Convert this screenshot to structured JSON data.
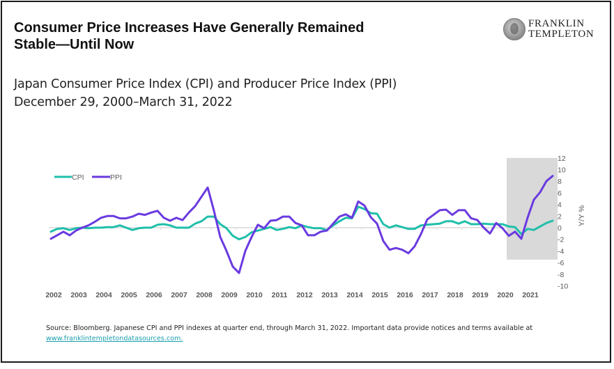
{
  "header": {
    "title_line1": "Consumer Price Increases Have Generally Remained",
    "title_line2": "Stable—Until Now",
    "subtitle_line1": "Japan Consumer Price Index (CPI) and Producer Price Index (PPI)",
    "subtitle_line2": "December 29, 2000–March 31, 2022"
  },
  "logo": {
    "line1": "FRANKLIN",
    "line2": "TEMPLETON",
    "icon": "franklin-portrait-icon"
  },
  "footer": {
    "source_text": "Source: Bloomberg. Japanese CPI and PPI indexes at quarter end, through March 31, 2022. Important data provide notices and terms available at ",
    "link_text": "www.franklintempletondatasources.com."
  },
  "colors": {
    "cpi": "#1fbfaa",
    "ppi": "#6a3ae0",
    "highlight": "#d9d9d9",
    "axis_text": "#595959",
    "zero_line": "#d9d9d9"
  },
  "chart_data": {
    "type": "line",
    "title": "Japan Consumer Price Index (CPI) and Producer Price Index (PPI)",
    "xlabel": "",
    "ylabel": "Y/Y %",
    "ylim": [
      -10,
      12
    ],
    "yticks": [
      12,
      10,
      8,
      6,
      4,
      2,
      0,
      -2,
      -4,
      -6,
      -8,
      -10
    ],
    "xtick_labels": [
      "2002",
      "2003",
      "2004",
      "2005",
      "2006",
      "2007",
      "2008",
      "2009",
      "2010",
      "2011",
      "2012",
      "2013",
      "2014",
      "2015",
      "2016",
      "2017",
      "2018",
      "2019",
      "2020",
      "2021"
    ],
    "x_start": "2002-Q1",
    "x_end": "2022-Q1",
    "frequency": "quarterly",
    "legend": {
      "position": "top-left",
      "entries": [
        "CPI",
        "PPI"
      ]
    },
    "grid": false,
    "highlight_region": {
      "from": "2020-Q2",
      "to": "2022-Q1",
      "ymin": -5.5,
      "ymax": 12
    },
    "series": [
      {
        "name": "CPI",
        "values": [
          -0.7,
          -0.2,
          -0.1,
          -0.4,
          -0.1,
          0.0,
          -0.1,
          0.0,
          0.0,
          0.1,
          0.1,
          0.4,
          0.0,
          -0.4,
          -0.1,
          0.0,
          0.0,
          0.5,
          0.6,
          0.4,
          0.0,
          0.0,
          0.0,
          0.7,
          1.1,
          1.9,
          1.9,
          0.6,
          -0.1,
          -1.4,
          -2.0,
          -1.6,
          -0.8,
          -0.5,
          -0.2,
          0.1,
          -0.4,
          -0.2,
          0.1,
          -0.1,
          0.4,
          0.1,
          -0.1,
          -0.1,
          -0.4,
          0.4,
          1.1,
          1.7,
          1.6,
          3.6,
          3.2,
          2.5,
          2.4,
          0.6,
          0.0,
          0.4,
          0.1,
          -0.2,
          -0.2,
          0.4,
          0.5,
          0.6,
          0.7,
          1.1,
          1.1,
          0.7,
          1.1,
          0.6,
          0.6,
          0.7,
          0.6,
          0.6,
          0.6,
          0.2,
          0.1,
          -1.1,
          -0.2,
          -0.4,
          0.2,
          0.8,
          1.2
        ]
      },
      {
        "name": "PPI",
        "values": [
          -1.9,
          -1.3,
          -0.7,
          -1.3,
          -0.5,
          0.0,
          0.4,
          1.0,
          1.7,
          2.0,
          2.0,
          1.6,
          1.6,
          1.9,
          2.4,
          2.2,
          2.6,
          2.9,
          1.7,
          1.2,
          1.7,
          1.3,
          2.6,
          3.7,
          5.3,
          6.9,
          2.9,
          -1.6,
          -4.0,
          -6.7,
          -7.8,
          -4.0,
          -1.6,
          0.5,
          -0.1,
          1.2,
          1.3,
          1.9,
          1.9,
          0.8,
          0.4,
          -1.3,
          -1.3,
          -0.7,
          -0.5,
          0.7,
          1.9,
          2.3,
          1.7,
          4.5,
          3.8,
          1.8,
          0.7,
          -2.3,
          -3.8,
          -3.5,
          -3.8,
          -4.4,
          -3.2,
          -1.1,
          1.4,
          2.2,
          3.0,
          3.1,
          2.2,
          3.0,
          3.0,
          1.6,
          1.3,
          0.0,
          -1.0,
          0.8,
          -0.1,
          -1.4,
          -0.7,
          -1.9,
          1.7,
          4.8,
          6.1,
          8.0,
          8.9
        ]
      }
    ]
  }
}
